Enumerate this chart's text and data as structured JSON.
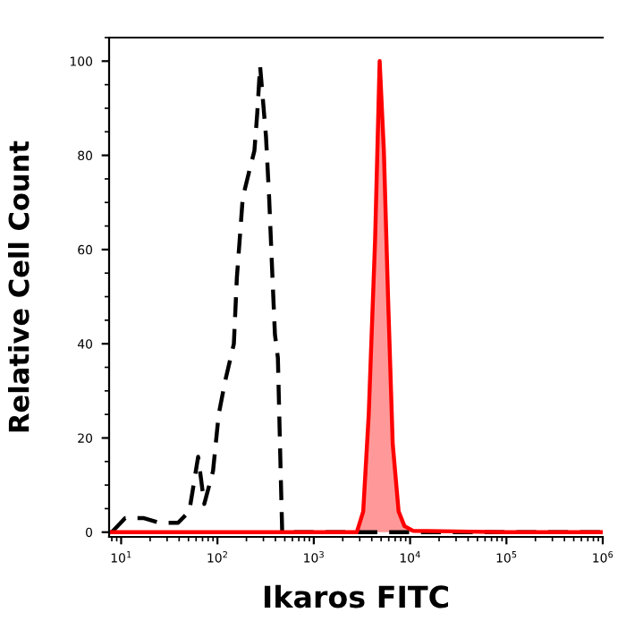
{
  "chart_data": {
    "type": "line",
    "xlabel": "Ikaros FITC",
    "ylabel": "Relative Cell Count",
    "log": "x",
    "xlim": [
      7.5,
      1000000
    ],
    "xticks": [
      {
        "value": 10,
        "label": "10$^{1}$"
      },
      {
        "value": 100,
        "label": "10$^{2}$"
      },
      {
        "value": 1000,
        "label": "10$^{3}$"
      },
      {
        "value": 10000,
        "label": "10$^{4}$"
      },
      {
        "value": 100000,
        "label": "10$^{5}$"
      },
      {
        "value": 1000000,
        "label": "10$^{6}$"
      }
    ],
    "ylim": [
      -1,
      105
    ],
    "yticks": [
      0,
      20,
      40,
      60,
      80,
      100
    ],
    "grid": false,
    "series": [
      {
        "color": "#000000",
        "line_style": "dashed",
        "x": [
          8,
          11,
          17,
          25,
          39,
          51,
          63,
          73,
          90,
          103,
          120,
          148,
          159,
          170,
          183,
          210,
          242,
          259,
          277,
          319,
          344,
          369,
          395,
          424,
          454,
          470,
          1000,
          10000,
          100000,
          1000000
        ],
        "values": [
          0,
          3,
          3,
          2,
          2,
          4.4,
          16,
          6,
          13,
          25,
          32,
          40,
          54,
          62,
          71,
          76,
          81,
          89,
          99,
          84,
          71,
          56,
          42,
          37,
          12,
          0,
          0,
          0,
          0,
          0
        ]
      },
      {
        "type": "area",
        "color": "#ff0000",
        "line_style": "solid",
        "x": [
          8,
          100,
          1000,
          2800,
          3260,
          3720,
          4330,
          4830,
          5340,
          5900,
          6600,
          7600,
          8730,
          10700,
          100000,
          1000000
        ],
        "values": [
          0,
          0,
          0,
          0,
          4.4,
          25,
          62,
          100,
          81,
          50,
          18.7,
          4.4,
          1.3,
          0.3,
          0,
          0
        ]
      }
    ]
  }
}
